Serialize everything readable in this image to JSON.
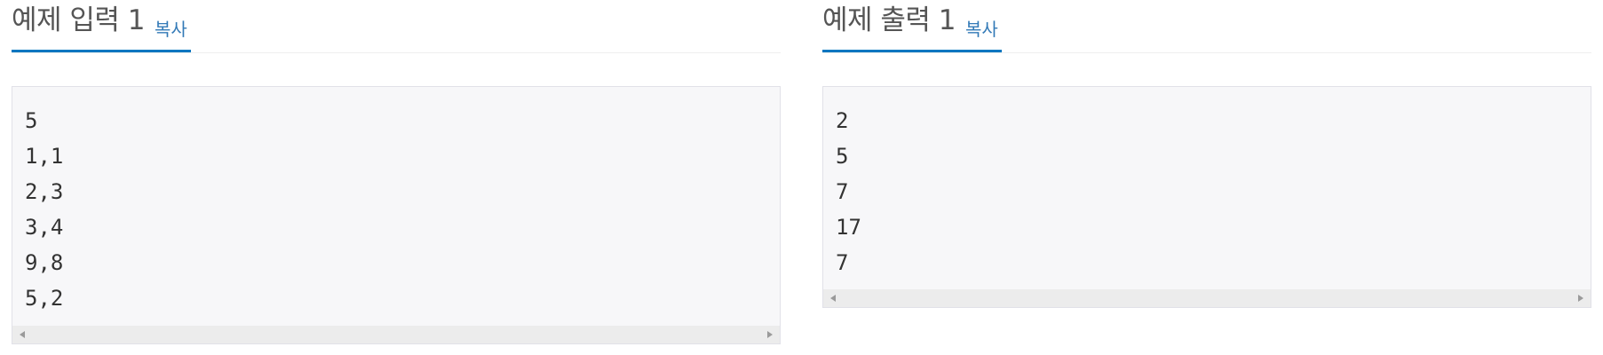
{
  "sample_input": {
    "title": "예제 입력 1",
    "copy_label": "복사",
    "lines": [
      "5",
      "1,1",
      "2,3",
      "3,4",
      "9,8",
      "5,2"
    ]
  },
  "sample_output": {
    "title": "예제 출력 1",
    "copy_label": "복사",
    "lines": [
      "2",
      "5",
      "7",
      "17",
      "7"
    ]
  },
  "colors": {
    "accent": "#0076c0",
    "link": "#337ab7",
    "title": "#555555",
    "box_background": "#f7f7f9"
  },
  "icons": [
    "scroll-left-arrow-icon",
    "scroll-right-arrow-icon"
  ]
}
